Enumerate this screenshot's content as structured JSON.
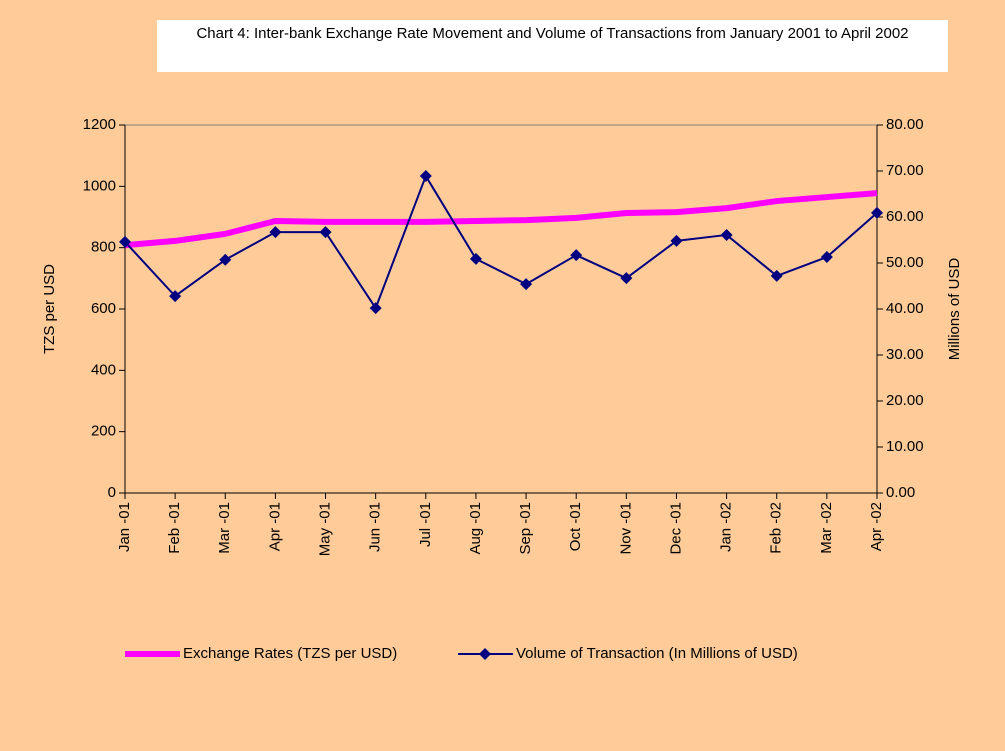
{
  "chart_data": {
    "type": "line",
    "title": "Chart 4: Inter-bank Exchange Rate Movement and Volume of Transactions from January 2001 to April 2002",
    "categories": [
      "Jan -01",
      "Feb -01",
      "Mar -01",
      "Apr -01",
      "May -01",
      "Jun -01",
      "Jul -01",
      "Aug -01",
      "Sep -01",
      "Oct -01",
      "Nov -01",
      "Dec -01",
      "Jan -02",
      "Feb -02",
      "Mar -02",
      "Apr -02"
    ],
    "series": [
      {
        "name": "Exchange Rates (TZS per USD)",
        "color": "#ff00ff",
        "axis": "y",
        "values": [
          808,
          822,
          845,
          887,
          884,
          884,
          884,
          887,
          890,
          897,
          913,
          916,
          929,
          952,
          965,
          978
        ]
      },
      {
        "name": "Volume of Transaction (In Millions of USD)",
        "color": "#000080",
        "axis": "y2",
        "values": [
          54.6,
          42.8,
          50.7,
          56.7,
          56.7,
          40.2,
          68.9,
          50.9,
          45.4,
          51.7,
          46.7,
          54.8,
          56.1,
          47.2,
          51.3,
          60.9
        ]
      }
    ],
    "ylabel": "TZS per USD",
    "y2label": "Millions of USD",
    "ylim": [
      0,
      1200
    ],
    "yticks": [
      0,
      200,
      400,
      600,
      800,
      1000,
      1200
    ],
    "y2lim": [
      0,
      80
    ],
    "y2ticks": [
      {
        "value": 0,
        "label": "0.00"
      },
      {
        "value": 10,
        "label": "10.00"
      },
      {
        "value": 20,
        "label": "20.00"
      },
      {
        "value": 30,
        "label": "30.00"
      },
      {
        "value": 40,
        "label": "40.00"
      },
      {
        "value": 50,
        "label": "50.00"
      },
      {
        "value": 60,
        "label": "60.00"
      },
      {
        "value": 70,
        "label": "70.00"
      },
      {
        "value": 80,
        "label": "80.00"
      }
    ],
    "grid": false,
    "legend": "bottom"
  }
}
